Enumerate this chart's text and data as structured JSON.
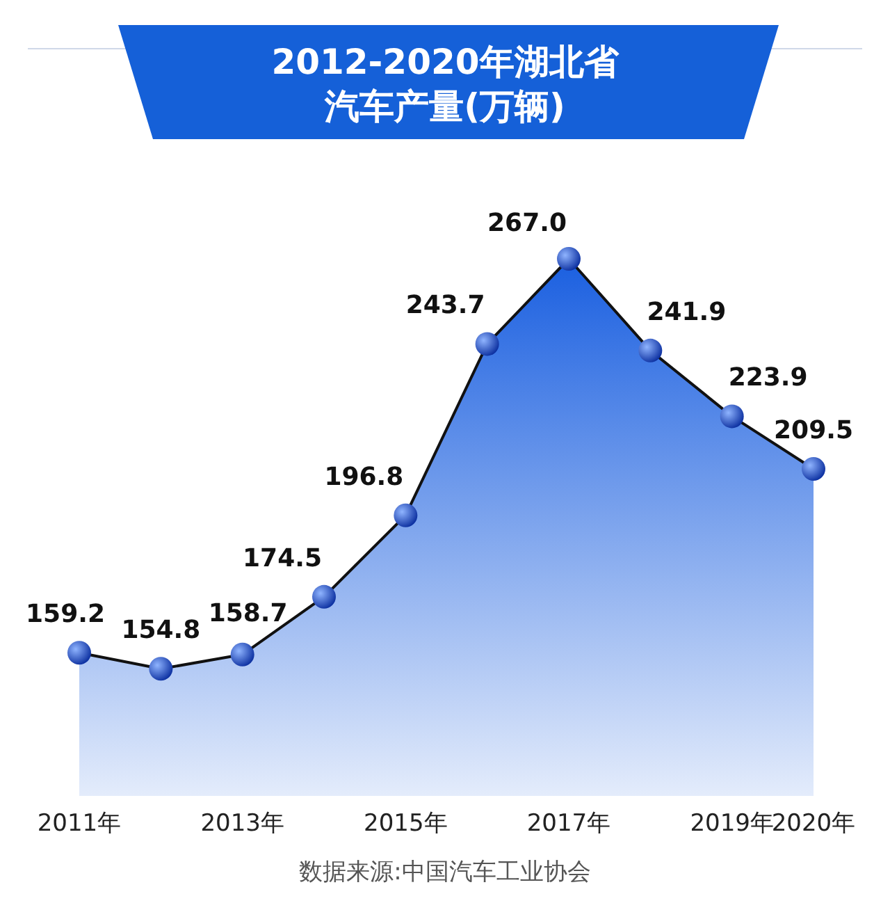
{
  "chart_data": {
    "type": "area",
    "title": "2012-2020年湖北省汽车产量(万辆)",
    "categories": [
      "2011年",
      null,
      "2013年",
      null,
      "2015年",
      null,
      "2017年",
      null,
      "2019年",
      "2020年"
    ],
    "values": [
      159.2,
      154.8,
      158.7,
      174.5,
      196.8,
      243.7,
      267.0,
      241.9,
      223.9,
      209.5
    ],
    "color": "#1a5fe0",
    "marker": "circle",
    "value_labels": [
      "159.2",
      "154.8",
      "158.7",
      "174.5",
      "196.8",
      "243.7",
      "267.0",
      "241.9",
      "223.9",
      "209.5"
    ],
    "annotations": [
      "数据来源:中国汽车工业协会"
    ]
  }
}
